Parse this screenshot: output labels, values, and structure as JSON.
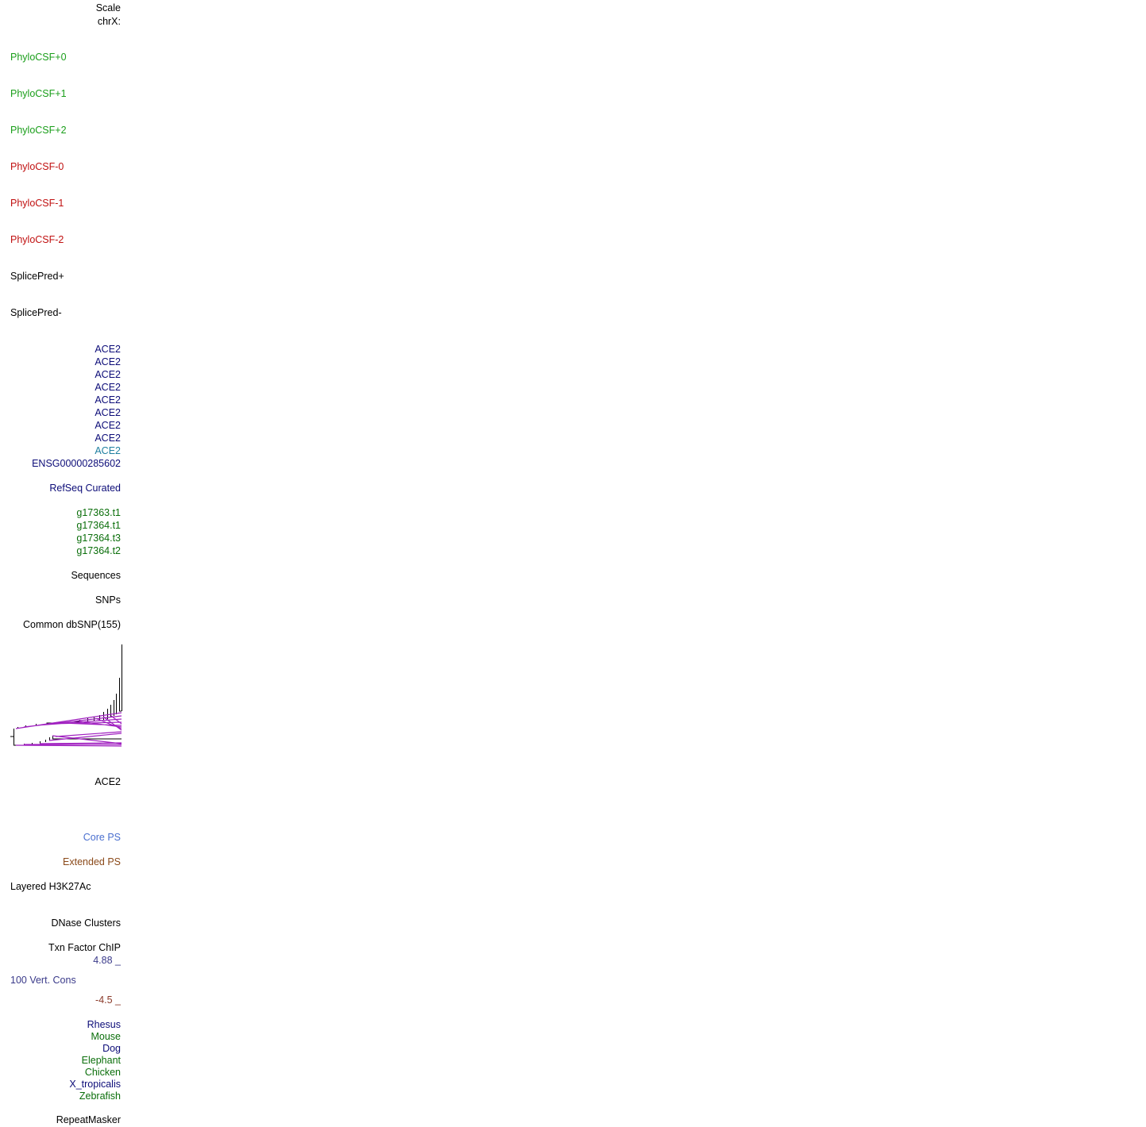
{
  "labels": [
    "Scale",
    "chrX:",
    "PhyloCSF+0",
    "PhyloCSF+1",
    "PhyloCSF+2",
    "PhyloCSF-0",
    "PhyloCSF-1",
    "PhyloCSF-2",
    "SplicePred+",
    "SplicePred-",
    "ACE2",
    "ACE2",
    "ACE2",
    "ACE2",
    "ACE2",
    "ACE2",
    "ACE2",
    "ACE2",
    "ACE2",
    "ENSG00000285602",
    "RefSeq Curated",
    "g17363.t1",
    "g17364.t1",
    "g17364.t3",
    "g17364.t2",
    "Sequences",
    "SNPs",
    "Common dbSNP(155)",
    "ACE2",
    "Core PS",
    "Extended PS",
    "Layered H3K27Ac",
    "DNase Clusters",
    "Txn Factor ChIP",
    "4.88 _",
    "100 Vert. Cons",
    "-4.5 _",
    "Rhesus",
    "Mouse",
    "Dog",
    "Elephant",
    "Chicken",
    "X_tropicalis",
    "Zebrafish",
    "RepeatMasker"
  ]
}
